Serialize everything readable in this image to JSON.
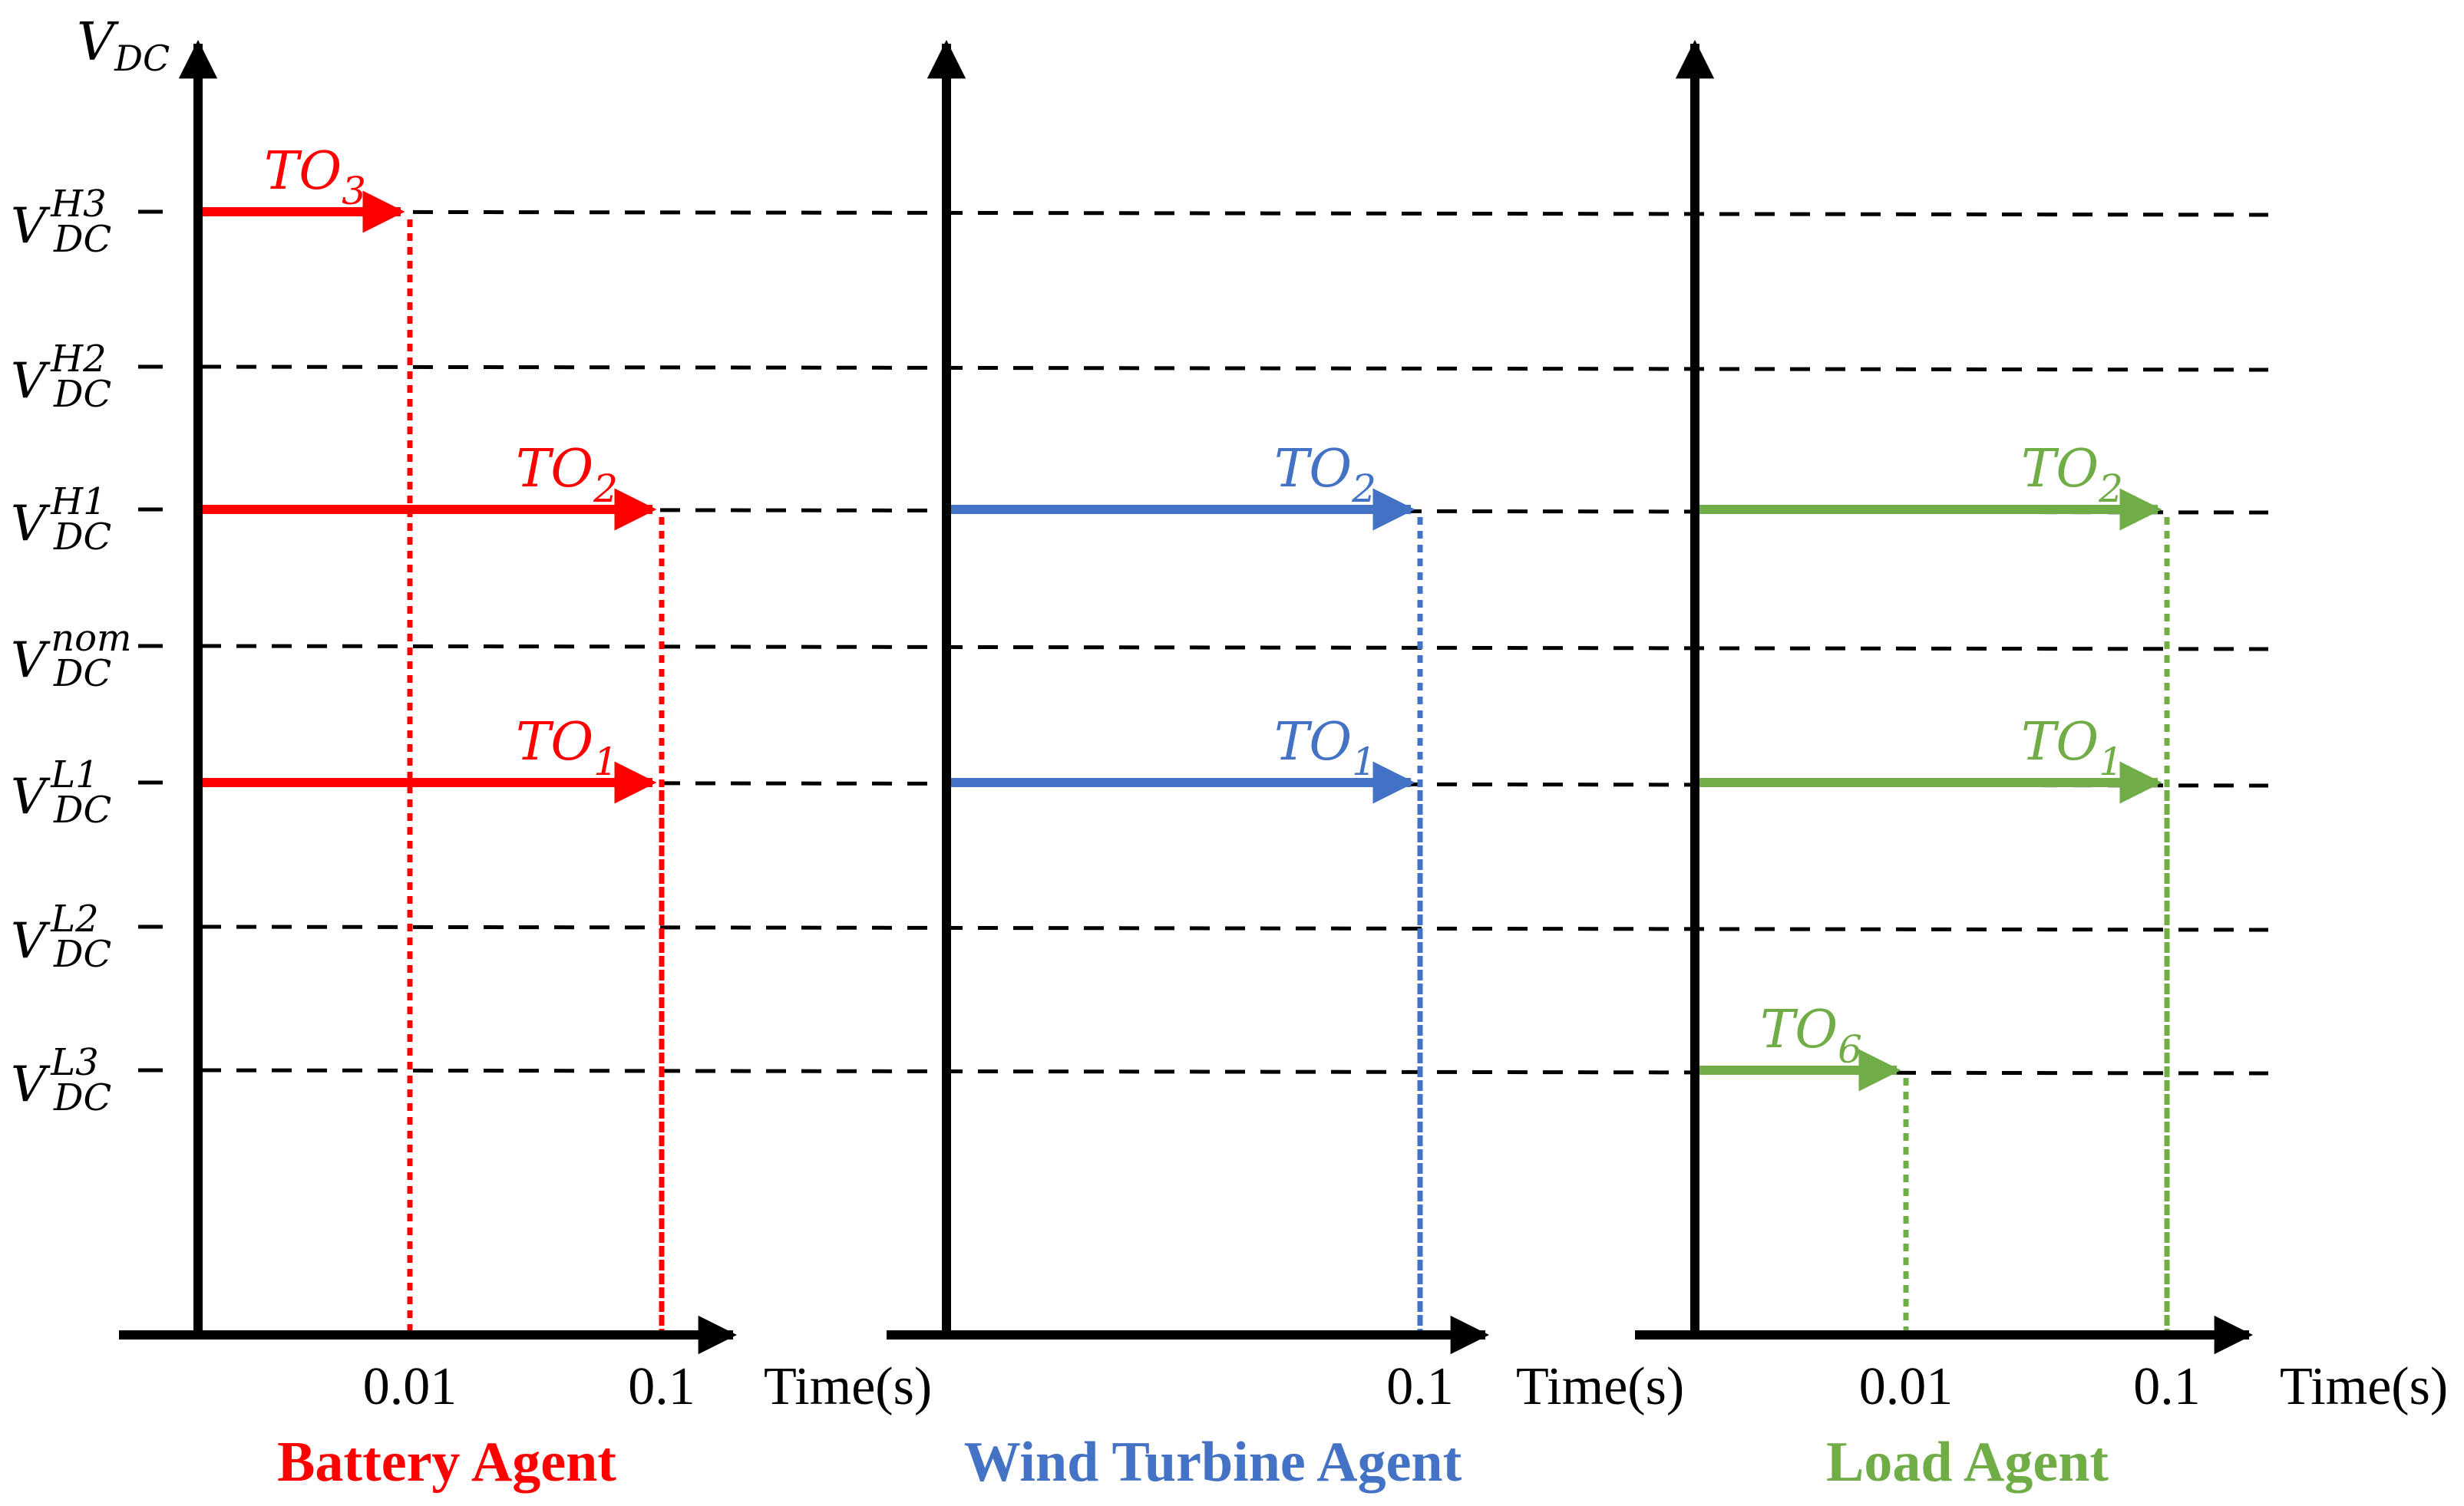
{
  "y_axis": {
    "label": {
      "base": "V",
      "sub": "DC"
    },
    "levels": [
      {
        "id": "H3",
        "base": "V",
        "sub": "DC",
        "sup": "H3"
      },
      {
        "id": "H2",
        "base": "V",
        "sub": "DC",
        "sup": "H2"
      },
      {
        "id": "H1",
        "base": "V",
        "sub": "DC",
        "sup": "H1"
      },
      {
        "id": "nom",
        "base": "V",
        "sub": "DC",
        "sup": "nom"
      },
      {
        "id": "L1",
        "base": "V",
        "sub": "DC",
        "sup": "L1"
      },
      {
        "id": "L2",
        "base": "V",
        "sub": "DC",
        "sup": "L2"
      },
      {
        "id": "L3",
        "base": "V",
        "sub": "DC",
        "sup": "L3"
      }
    ]
  },
  "panels": [
    {
      "title": "Battery Agent",
      "color": "#ff0000",
      "x_label": "Time(s)",
      "ticks": [
        "0.01",
        "0.1"
      ],
      "arrows": [
        {
          "level": "H3",
          "label": {
            "base": "TO",
            "sub": "3"
          },
          "t": 0.01
        },
        {
          "level": "H1",
          "label": {
            "base": "TO",
            "sub": "2"
          },
          "t": 0.1
        },
        {
          "level": "L1",
          "label": {
            "base": "TO",
            "sub": "1"
          },
          "t": 0.1
        }
      ]
    },
    {
      "title": "Wind Turbine Agent",
      "color": "#4472c4",
      "x_label": "Time(s)",
      "ticks": [
        "0.1"
      ],
      "arrows": [
        {
          "level": "H1",
          "label": {
            "base": "TO",
            "sub": "2"
          },
          "t": 0.1
        },
        {
          "level": "L1",
          "label": {
            "base": "TO",
            "sub": "1"
          },
          "t": 0.1
        }
      ]
    },
    {
      "title": "Load Agent",
      "color": "#70ad47",
      "x_label": "Time(s)",
      "ticks": [
        "0.01",
        "0.1"
      ],
      "arrows": [
        {
          "level": "H1",
          "label": {
            "base": "TO",
            "sub": "2"
          },
          "t": 0.1
        },
        {
          "level": "L1",
          "label": {
            "base": "TO",
            "sub": "1"
          },
          "t": 0.1
        },
        {
          "level": "L3",
          "label": {
            "base": "TO",
            "sub": "6"
          },
          "t": 0.01
        }
      ]
    }
  ]
}
